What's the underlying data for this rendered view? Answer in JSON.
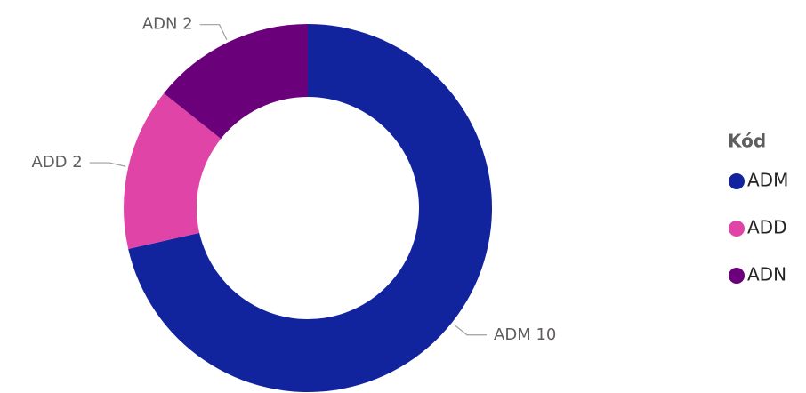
{
  "chart_data": {
    "type": "donut",
    "categories": [
      "ADM",
      "ADD",
      "ADN"
    ],
    "values": [
      10,
      2,
      2
    ],
    "colors": [
      "#12239e",
      "#e044a7",
      "#6b007b"
    ],
    "legend_title": "Kód",
    "legend": "right"
  }
}
